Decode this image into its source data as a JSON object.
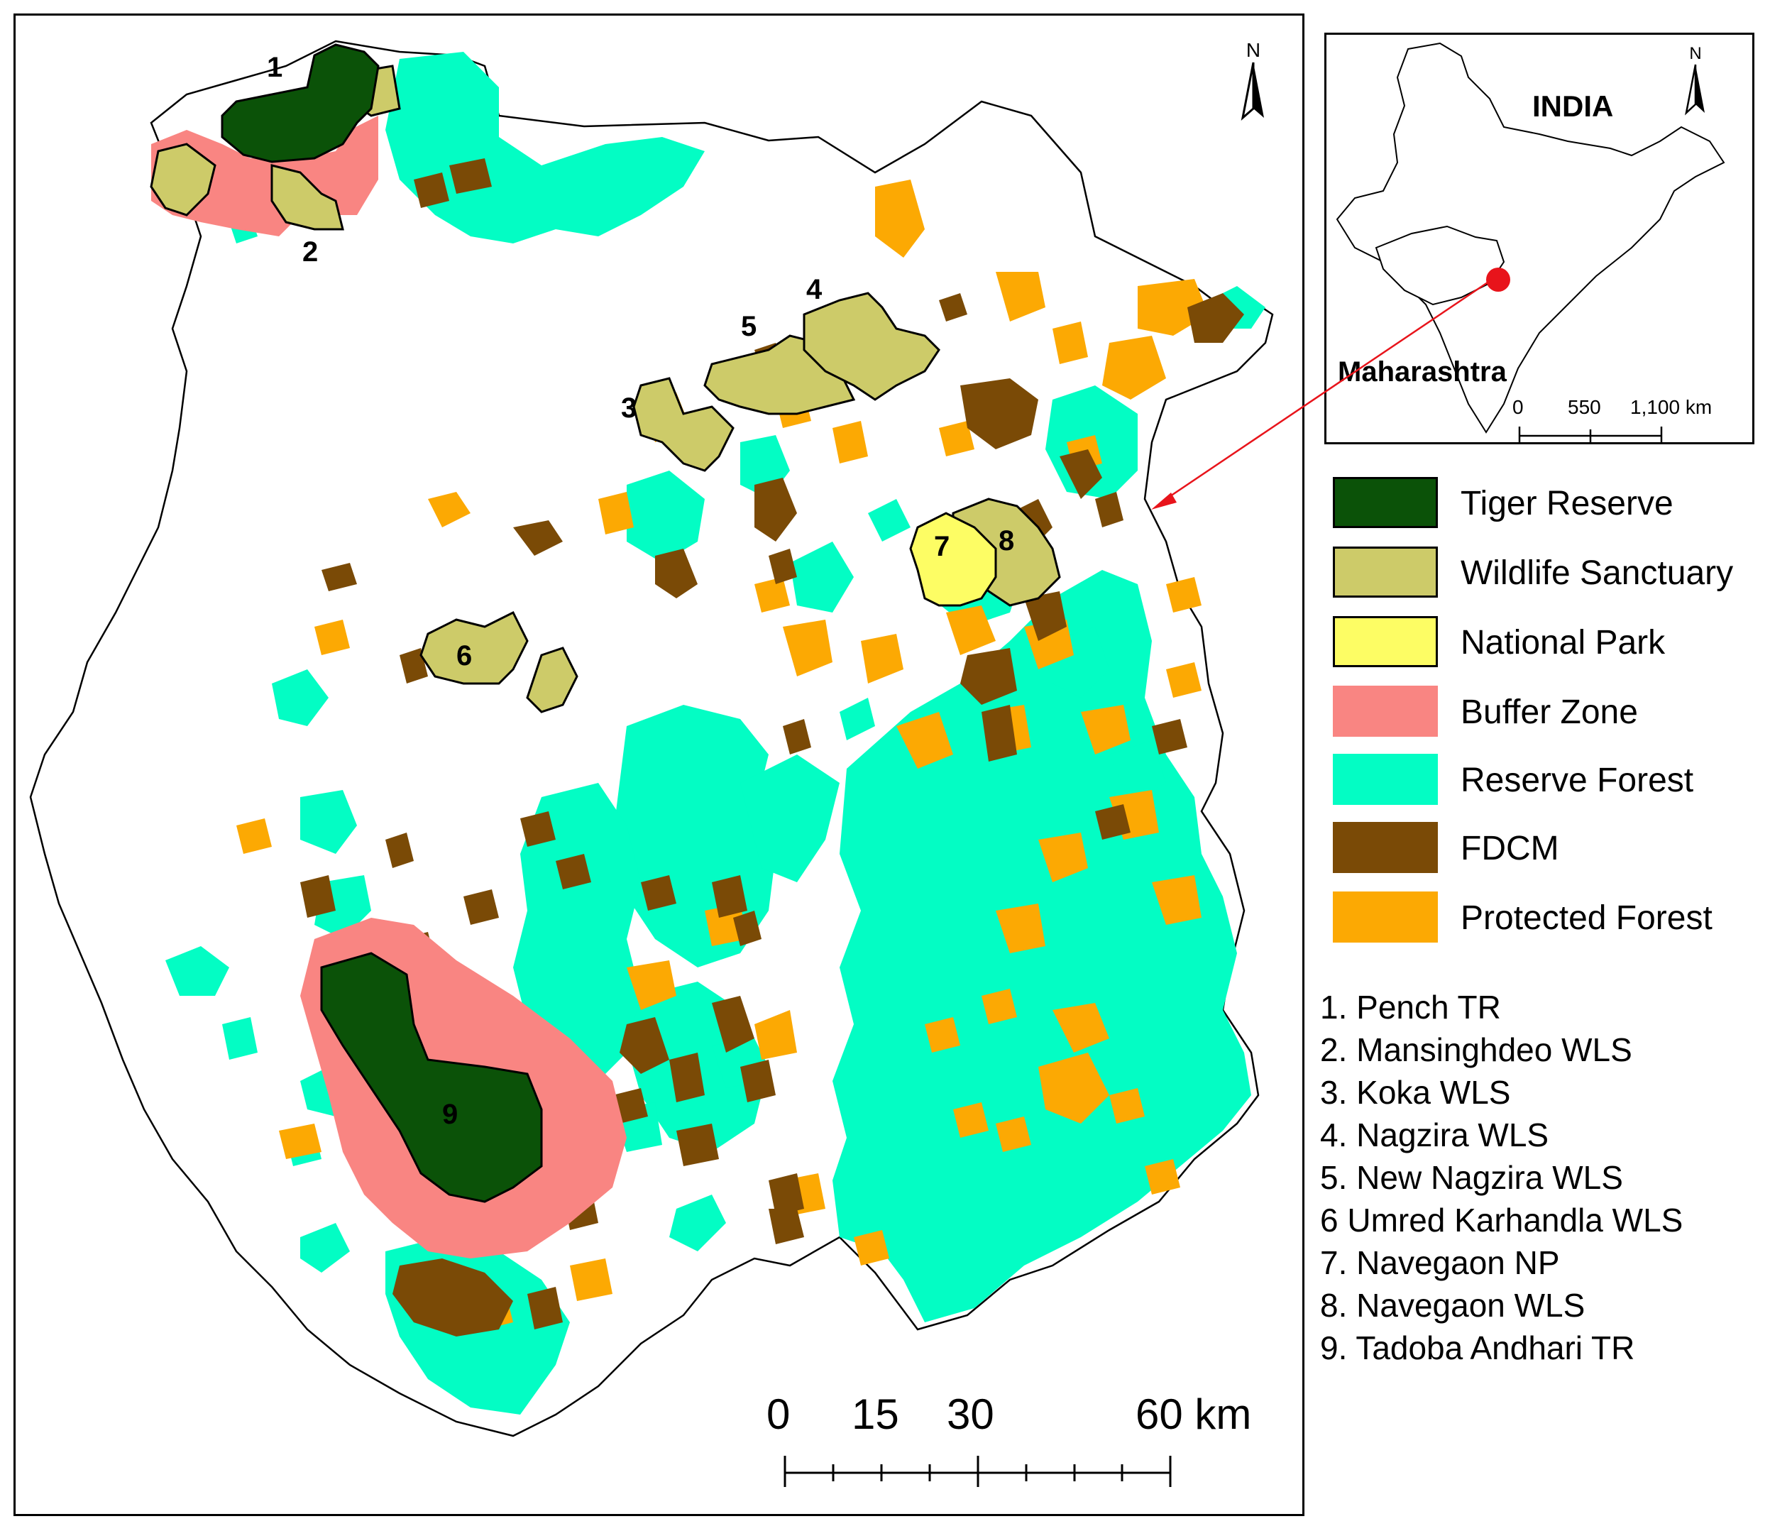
{
  "map": {
    "north_label": "N",
    "area_labels": [
      "1",
      "2",
      "3",
      "4",
      "5",
      "6",
      "7",
      "8",
      "9"
    ],
    "scale_labels": [
      "0",
      "15",
      "30",
      "60 km"
    ]
  },
  "inset": {
    "country_label": "INDIA",
    "state_label": "Maharashtra",
    "north_label": "N",
    "scale_labels": [
      "0",
      "550",
      "1,100 km"
    ]
  },
  "legend": [
    {
      "label": "Tiger Reserve",
      "color": "#0b5208"
    },
    {
      "label": "Wildlife Sanctuary",
      "color": "#cdcb69"
    },
    {
      "label": "National Park",
      "color": "#fdfd64"
    },
    {
      "label": "Buffer Zone",
      "color": "#f98582"
    },
    {
      "label": "Reserve Forest",
      "color": "#03fdc4"
    },
    {
      "label": "FDCM",
      "color": "#7a4a06"
    },
    {
      "label": "Protected Forest",
      "color": "#fca903"
    }
  ],
  "protected_areas": [
    "1. Pench TR",
    "2. Mansinghdeo WLS",
    "3. Koka WLS",
    "4. Nagzira WLS",
    "5. New Nagzira WLS",
    "6  Umred Karhandla WLS",
    "7. Navegaon NP",
    "8. Navegaon WLS",
    "9. Tadoba Andhari TR"
  ],
  "colors": {
    "tiger_reserve": "#0b5208",
    "wildlife_sanctuary": "#cdcb69",
    "national_park": "#fdfd64",
    "buffer_zone": "#f98582",
    "reserve_forest": "#03fdc4",
    "fdcm": "#7a4a06",
    "protected_forest": "#fca903",
    "pointer": "#e8141b"
  }
}
